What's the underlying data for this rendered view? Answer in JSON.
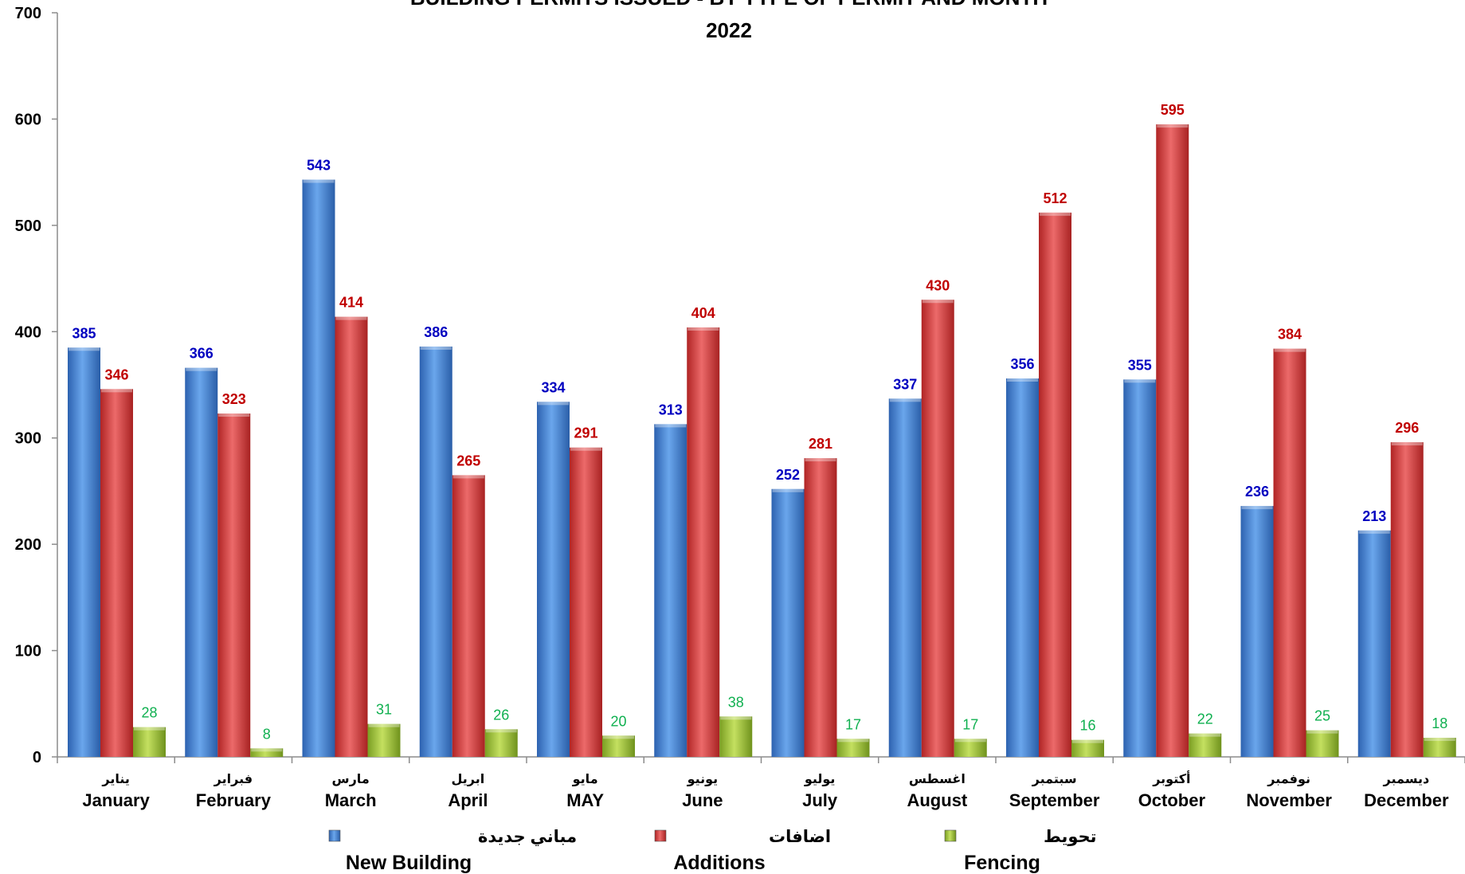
{
  "chart_data": {
    "type": "bar",
    "title": "BUILDING PERMITS ISSUED - BY TYPE OF PERMIT AND MONTH",
    "subtitle": "2022",
    "ylim": [
      0,
      700
    ],
    "yticks": [
      0,
      100,
      200,
      300,
      400,
      500,
      600,
      700
    ],
    "grid": false,
    "legend_position": "bottom",
    "categories": [
      "January",
      "February",
      "March",
      "April",
      "MAY",
      "June",
      "July",
      "August",
      "September",
      "October",
      "November",
      "December"
    ],
    "categories_ar": [
      "يناير",
      "فبراير",
      "مارس",
      "ابريل",
      "مايو",
      "يونيو",
      "يوليو",
      "اغسطس",
      "سبتمبر",
      "أكتوبر",
      "نوفمبر",
      "ديسمبر"
    ],
    "series": [
      {
        "name": "New Building",
        "name_ar": "مباني جديدة",
        "color": "#3f7fd0",
        "label_color": "#0000c0",
        "values": [
          385,
          366,
          543,
          386,
          334,
          313,
          252,
          337,
          356,
          355,
          236,
          213
        ]
      },
      {
        "name": "Additions",
        "name_ar": "اضافات",
        "color": "#d83a3a",
        "label_color": "#c00000",
        "values": [
          346,
          323,
          414,
          265,
          291,
          404,
          281,
          430,
          512,
          595,
          384,
          296
        ]
      },
      {
        "name": "Fencing",
        "name_ar": "تحويط",
        "color": "#9cc23a",
        "label_color": "#10b050",
        "values": [
          28,
          8,
          31,
          26,
          20,
          38,
          17,
          17,
          16,
          22,
          25,
          18
        ]
      }
    ]
  }
}
